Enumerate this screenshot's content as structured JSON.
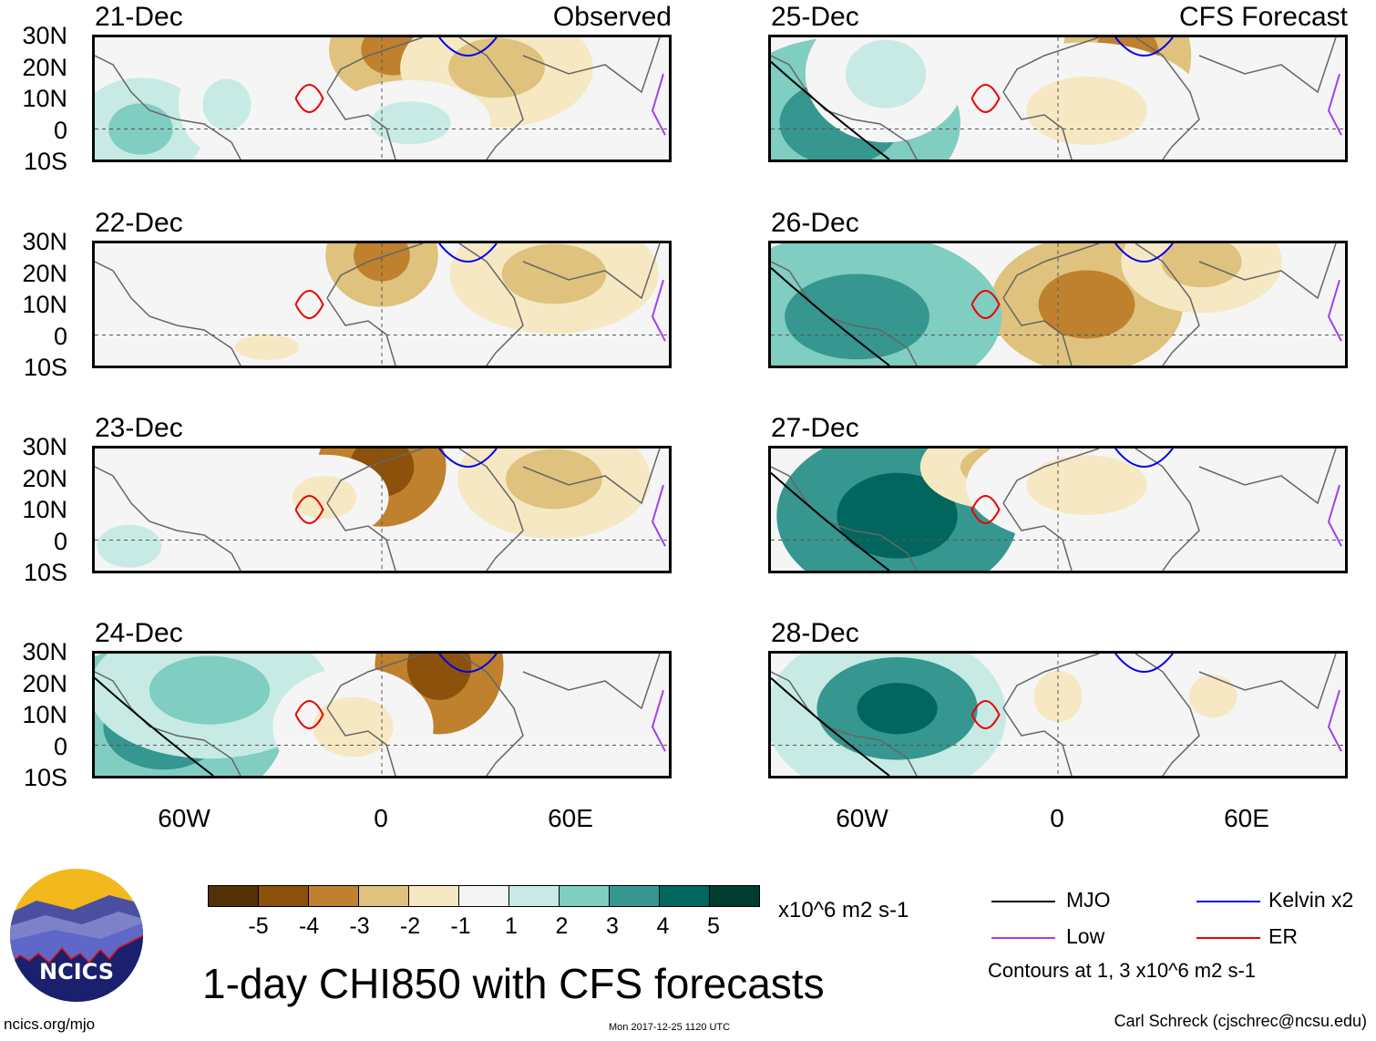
{
  "panels": [
    {
      "date": "21-Dec",
      "tag": "Observed",
      "column": "left",
      "row": 0
    },
    {
      "date": "22-Dec",
      "tag": "",
      "column": "left",
      "row": 1
    },
    {
      "date": "23-Dec",
      "tag": "",
      "column": "left",
      "row": 2
    },
    {
      "date": "24-Dec",
      "tag": "",
      "column": "left",
      "row": 3
    },
    {
      "date": "25-Dec",
      "tag": "CFS Forecast",
      "column": "right",
      "row": 0
    },
    {
      "date": "26-Dec",
      "tag": "",
      "column": "right",
      "row": 1
    },
    {
      "date": "27-Dec",
      "tag": "",
      "column": "right",
      "row": 2
    },
    {
      "date": "28-Dec",
      "tag": "",
      "column": "right",
      "row": 3
    }
  ],
  "lat_labels": [
    "30N",
    "20N",
    "10N",
    "0",
    "10S"
  ],
  "lon_labels": [
    "60W",
    "0",
    "60E"
  ],
  "colorbar": {
    "colors": [
      "#543005",
      "#8c510a",
      "#bf812d",
      "#dfc27d",
      "#f6e8c3",
      "#f5f5f5",
      "#c7eae5",
      "#80cdc1",
      "#35978f",
      "#01665e",
      "#003c30"
    ],
    "labels": [
      "-5",
      "-4",
      "-3",
      "-2",
      "-1",
      "1",
      "2",
      "3",
      "4",
      "5"
    ],
    "units": "x10^6 m2 s-1"
  },
  "legend": {
    "items": [
      {
        "label": "MJO",
        "color": "#000000"
      },
      {
        "label": "Kelvin x2",
        "color": "#0000ee"
      },
      {
        "label": "Low",
        "color": "#a040f0"
      },
      {
        "label": "ER",
        "color": "#ee0000"
      }
    ],
    "contours_note": "Contours at 1, 3 x10^6 m2 s-1"
  },
  "title": "1-day CHI850 with CFS forecasts",
  "timestamp": "Mon 2017-12-25 1120 UTC",
  "logo": {
    "text": "NCICS"
  },
  "site": "ncics.org/mjo",
  "author": "Carl Schreck (cjschrec@ncsu.edu)"
}
